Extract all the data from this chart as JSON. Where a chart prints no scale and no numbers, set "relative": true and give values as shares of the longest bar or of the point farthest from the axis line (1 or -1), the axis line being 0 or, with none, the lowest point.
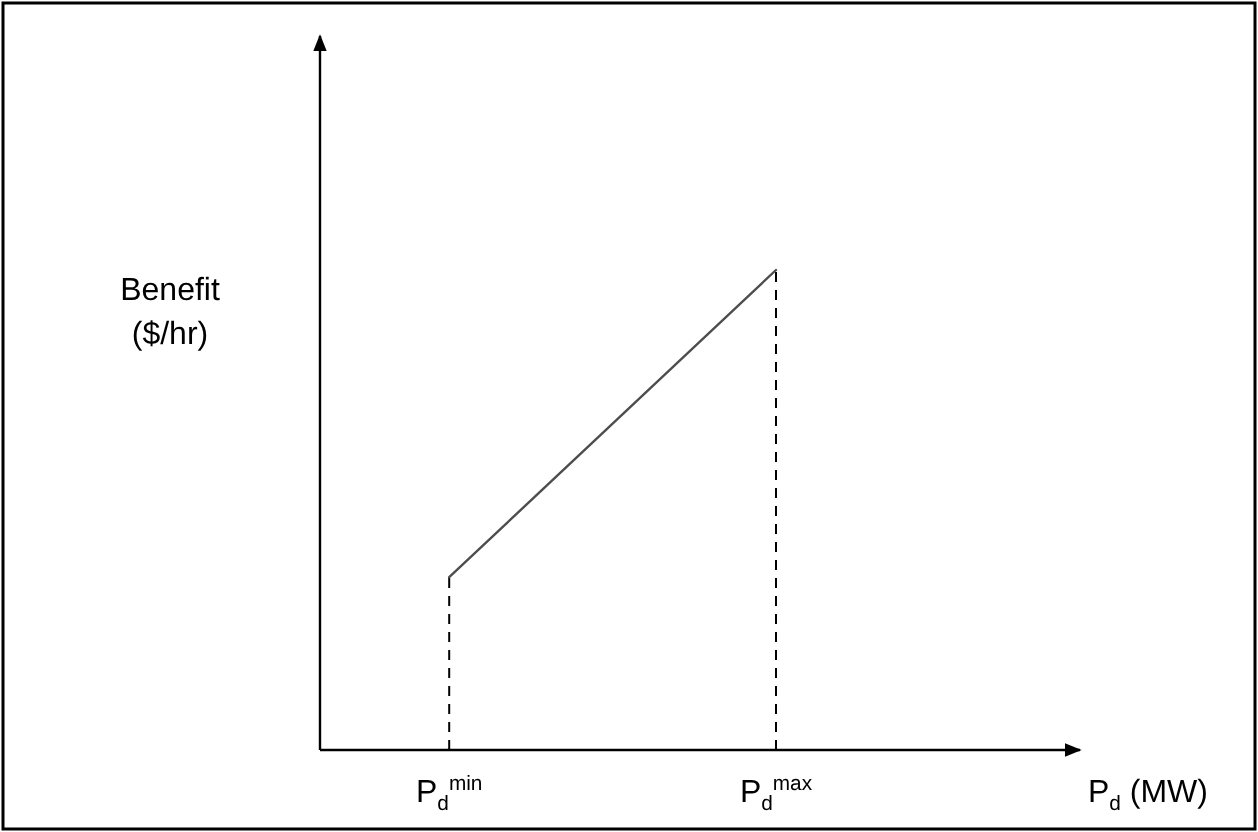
{
  "chart_data": {
    "type": "line",
    "relative": true,
    "xlabel": "P$_{d}$ (MW)",
    "ylabel": "Benefit ($/hr)",
    "categories": [
      "P$_{d}$$^{min}$",
      "P$_{d}$$^{max}$"
    ],
    "series": [
      {
        "color": "#4d4d4d",
        "values": [
          0.36,
          1
        ]
      }
    ],
    "ref_lines": [
      {
        "axis": "x",
        "value": "P$_{d}$$^{min}$",
        "line_style": "dashed",
        "color": "#000000"
      },
      {
        "axis": "x",
        "value": "P$_{d}$$^{max}$",
        "line_style": "dashed",
        "color": "#000000"
      }
    ],
    "marker": "none",
    "line_style": "solid"
  }
}
